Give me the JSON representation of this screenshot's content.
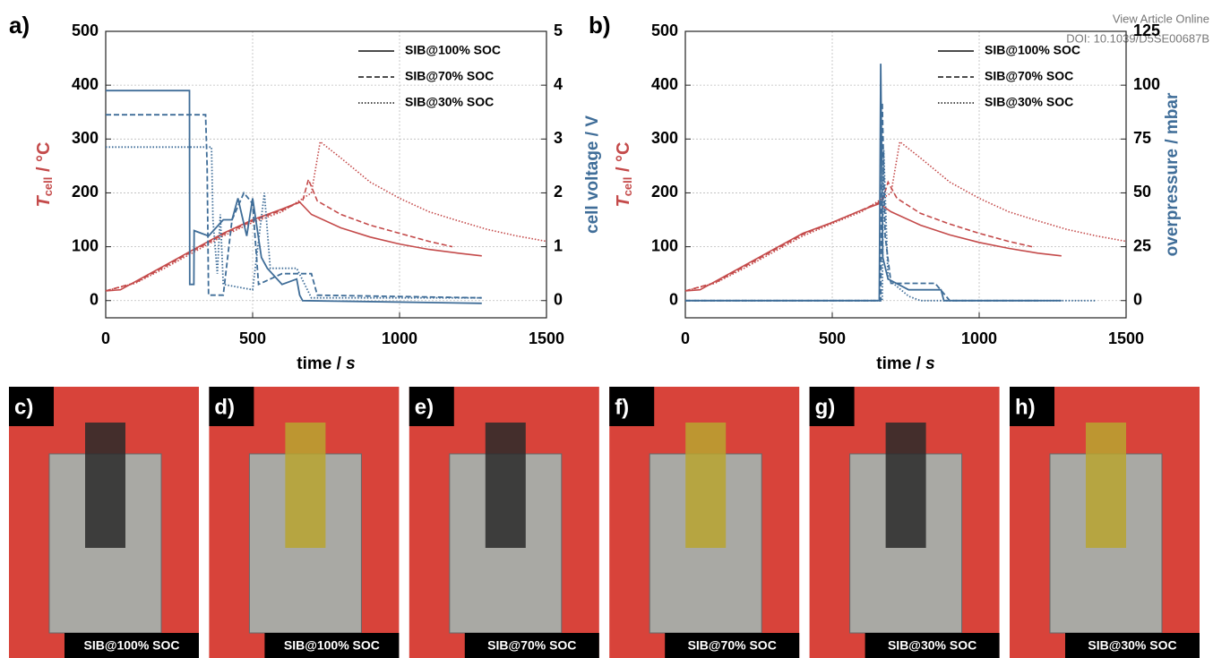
{
  "header": {
    "link": "View Article Online",
    "doi": "DOI: 10.1039/D5SE00687B"
  },
  "chart_data": [
    {
      "type": "line",
      "panel": "a)",
      "xlabel": {
        "main": "time / ",
        "unit": "s"
      },
      "ylabel": {
        "main": "T",
        "sub": "cell",
        "rest": " / °C"
      },
      "ycolor": "#c44a4a",
      "y2label": "cell voltage / V",
      "y2color": "#3f6d98",
      "xlim": [
        0,
        1500
      ],
      "xticks": [
        0,
        500,
        1000,
        1500
      ],
      "ylim": [
        -32,
        500
      ],
      "yticks": [
        0,
        100,
        200,
        300,
        400,
        500
      ],
      "y2lim": [
        -0.32,
        5
      ],
      "y2ticks": [
        0,
        1,
        2,
        3,
        4,
        5
      ],
      "grid": true,
      "legend": "upper right",
      "series": [
        {
          "name": "SIB@100% SOC",
          "color": "#c44a4a",
          "dash": "solid",
          "axis": "y",
          "x": [
            0,
            50,
            100,
            200,
            300,
            400,
            500,
            600,
            660,
            700,
            800,
            900,
            1000,
            1100,
            1200,
            1280
          ],
          "values": [
            18,
            20,
            35,
            65,
            95,
            125,
            150,
            170,
            183,
            160,
            135,
            118,
            105,
            95,
            88,
            83
          ]
        },
        {
          "name": "SIB@70% SOC",
          "color": "#c44a4a",
          "dash": "dashed",
          "axis": "y",
          "x": [
            0,
            100,
            200,
            300,
            400,
            500,
            600,
            670,
            690,
            720,
            800,
            900,
            1000,
            1100,
            1180
          ],
          "values": [
            18,
            33,
            63,
            93,
            123,
            148,
            168,
            185,
            225,
            185,
            160,
            140,
            125,
            110,
            100
          ]
        },
        {
          "name": "SIB@30% SOC",
          "color": "#c44a4a",
          "dash": "dotted",
          "axis": "y",
          "x": [
            0,
            100,
            200,
            300,
            400,
            500,
            600,
            700,
            730,
            800,
            900,
            1000,
            1100,
            1200,
            1300,
            1400,
            1500
          ],
          "values": [
            18,
            32,
            60,
            90,
            120,
            145,
            165,
            200,
            295,
            265,
            220,
            190,
            165,
            148,
            132,
            120,
            110
          ]
        },
        {
          "color": "#3f6d98",
          "dash": "solid",
          "axis": "y2",
          "x": [
            0,
            285,
            286,
            300,
            301,
            350,
            400,
            430,
            450,
            480,
            500,
            530,
            550,
            600,
            650,
            660,
            670,
            1280
          ],
          "values": [
            3.9,
            3.9,
            0.3,
            0.3,
            1.3,
            1.2,
            1.5,
            1.5,
            1.9,
            1.2,
            1.9,
            0.8,
            0.6,
            0.3,
            0.4,
            0.1,
            0,
            -0.05
          ]
        },
        {
          "color": "#3f6d98",
          "dash": "dashed",
          "axis": "y2",
          "x": [
            0,
            340,
            345,
            350,
            400,
            430,
            470,
            500,
            520,
            600,
            700,
            720,
            1280
          ],
          "values": [
            3.45,
            3.45,
            2.5,
            0.1,
            0.1,
            1.5,
            2,
            1.8,
            0.3,
            0.5,
            0.5,
            0.1,
            0.05
          ]
        },
        {
          "color": "#3f6d98",
          "dash": "dotted",
          "axis": "y2",
          "x": [
            0,
            360,
            365,
            380,
            390,
            400,
            500,
            540,
            560,
            650,
            700,
            1280
          ],
          "values": [
            2.85,
            2.85,
            1.5,
            0.5,
            1.6,
            0.3,
            0.2,
            2,
            0.6,
            0.6,
            0.05,
            0.05
          ]
        }
      ]
    },
    {
      "type": "line",
      "panel": "b)",
      "xlabel": {
        "main": "time / ",
        "unit": "s"
      },
      "ylabel": {
        "main": "T",
        "sub": "cell",
        "rest": " / °C"
      },
      "ycolor": "#c44a4a",
      "y2label": "overpressure / mbar",
      "y2color": "#3f6d98",
      "xlim": [
        0,
        1500
      ],
      "xticks": [
        0,
        500,
        1000,
        1500
      ],
      "ylim": [
        -32,
        500
      ],
      "yticks": [
        0,
        100,
        200,
        300,
        400,
        500
      ],
      "y2lim": [
        -8,
        125
      ],
      "y2ticks": [
        0,
        25,
        50,
        75,
        100,
        125
      ],
      "grid": true,
      "legend": "upper right",
      "series": [
        {
          "name": "SIB@100% SOC",
          "color": "#c44a4a",
          "dash": "solid",
          "axis": "y",
          "x": [
            0,
            50,
            100,
            200,
            300,
            400,
            500,
            600,
            660,
            700,
            800,
            900,
            1000,
            1100,
            1200,
            1280
          ],
          "values": [
            18,
            20,
            35,
            65,
            95,
            125,
            145,
            168,
            180,
            165,
            140,
            122,
            108,
            97,
            88,
            83
          ]
        },
        {
          "name": "SIB@70% SOC",
          "color": "#c44a4a",
          "dash": "dashed",
          "axis": "y",
          "x": [
            0,
            100,
            200,
            300,
            400,
            500,
            600,
            670,
            690,
            720,
            800,
            900,
            1000,
            1100,
            1180
          ],
          "values": [
            18,
            33,
            63,
            93,
            123,
            145,
            168,
            185,
            220,
            190,
            162,
            142,
            125,
            110,
            100
          ]
        },
        {
          "name": "SIB@30% SOC",
          "color": "#c44a4a",
          "dash": "dotted",
          "axis": "y",
          "x": [
            0,
            100,
            200,
            300,
            400,
            500,
            600,
            700,
            730,
            800,
            900,
            1000,
            1100,
            1200,
            1300,
            1400,
            1500
          ],
          "values": [
            18,
            32,
            60,
            90,
            120,
            143,
            165,
            200,
            295,
            265,
            220,
            190,
            165,
            148,
            132,
            120,
            110
          ]
        },
        {
          "color": "#3f6d98",
          "dash": "solid",
          "axis": "y2",
          "x": [
            0,
            660,
            665,
            672,
            690,
            760,
            870,
            880,
            1280
          ],
          "values": [
            0,
            0,
            110,
            20,
            10,
            5,
            5,
            0,
            0
          ]
        },
        {
          "color": "#3f6d98",
          "dash": "dashed",
          "axis": "y2",
          "x": [
            0,
            665,
            670,
            680,
            700,
            850,
            900,
            1200
          ],
          "values": [
            0,
            0,
            92,
            30,
            8,
            8,
            0,
            0
          ]
        },
        {
          "color": "#3f6d98",
          "dash": "dotted",
          "axis": "y2",
          "x": [
            0,
            670,
            675,
            690,
            760,
            800,
            1400
          ],
          "values": [
            0,
            0,
            70,
            10,
            2,
            0,
            0
          ]
        }
      ]
    }
  ],
  "photos": [
    {
      "label": "c)",
      "caption": "SIB@100% SOC"
    },
    {
      "label": "d)",
      "caption": "SIB@100% SOC"
    },
    {
      "label": "e)",
      "caption": "SIB@70% SOC"
    },
    {
      "label": "f)",
      "caption": "SIB@70% SOC"
    },
    {
      "label": "g)",
      "caption": "SIB@30% SOC"
    },
    {
      "label": "h)",
      "caption": "SIB@30% SOC"
    }
  ]
}
